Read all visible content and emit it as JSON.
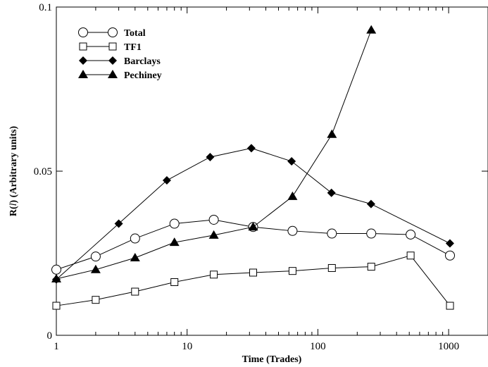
{
  "chart_data": {
    "type": "line",
    "title": "",
    "xlabel": "Time (Trades)",
    "ylabel_prefix": "R(",
    "ylabel_var": "l",
    "ylabel_suffix": ") (Arbitrary units)",
    "xscale": "log",
    "xlim": [
      1,
      2000
    ],
    "ylim": [
      0,
      0.1
    ],
    "x_ticks": [
      {
        "value": 1,
        "label": "1"
      },
      {
        "value": 10,
        "label": "10"
      },
      {
        "value": 100,
        "label": "100"
      },
      {
        "value": 1000,
        "label": "1000"
      }
    ],
    "y_ticks": [
      {
        "value": 0,
        "label": "0"
      },
      {
        "value": 0.05,
        "label": "0.05"
      },
      {
        "value": 0.1,
        "label": "0.1"
      }
    ],
    "grid": false,
    "legend_position": "top-left",
    "series": [
      {
        "name": "Total",
        "marker": "circle-open",
        "x": [
          1,
          2,
          4,
          8,
          16,
          32,
          64,
          128,
          256,
          512,
          1024
        ],
        "values": [
          0.02,
          0.024,
          0.0295,
          0.034,
          0.0352,
          0.033,
          0.0318,
          0.031,
          0.031,
          0.0307,
          0.0243
        ]
      },
      {
        "name": "TF1",
        "marker": "square-open",
        "x": [
          1,
          2,
          4,
          8,
          16,
          32,
          64,
          128,
          256,
          512,
          1024
        ],
        "values": [
          0.009,
          0.0108,
          0.0133,
          0.0162,
          0.0185,
          0.0191,
          0.0196,
          0.0205,
          0.0209,
          0.0243,
          0.009
        ]
      },
      {
        "name": "Barclays",
        "marker": "diamond-filled",
        "x": [
          1,
          3,
          7,
          15,
          31,
          63,
          127,
          255,
          1023
        ],
        "values": [
          0.017,
          0.034,
          0.0472,
          0.0543,
          0.057,
          0.053,
          0.0434,
          0.04,
          0.028
        ]
      },
      {
        "name": "Pechiney",
        "marker": "triangle-filled",
        "x": [
          1,
          2,
          4,
          8,
          16,
          32,
          64,
          128,
          256
        ],
        "values": [
          0.0172,
          0.02,
          0.0236,
          0.0283,
          0.0305,
          0.033,
          0.0423,
          0.0612,
          0.093
        ]
      }
    ]
  }
}
